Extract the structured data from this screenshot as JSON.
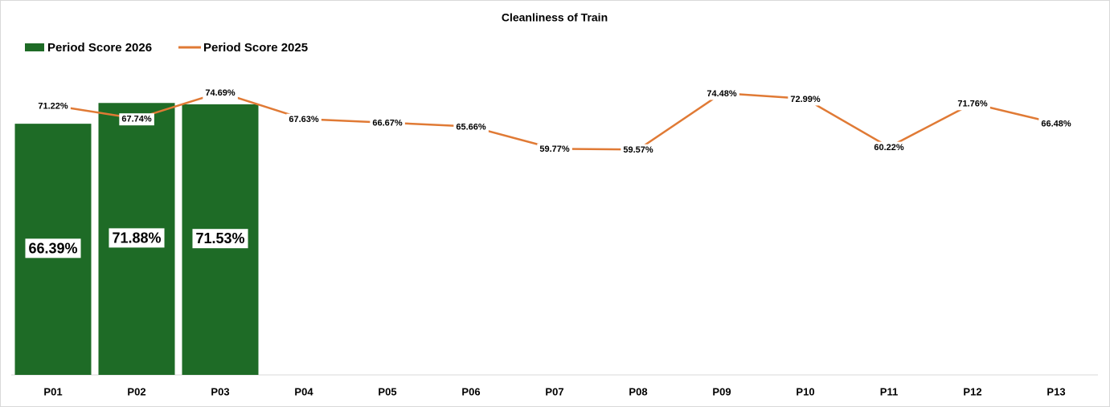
{
  "chart_data": {
    "type": "bar_line",
    "title": "Cleanliness of Train",
    "categories": [
      "P01",
      "P02",
      "P03",
      "P04",
      "P05",
      "P06",
      "P07",
      "P08",
      "P09",
      "P10",
      "P11",
      "P12",
      "P13"
    ],
    "series": [
      {
        "name": "Period Score 2026",
        "type": "bar",
        "color": "#1e6b26",
        "values": [
          66.39,
          71.88,
          71.53,
          null,
          null,
          null,
          null,
          null,
          null,
          null,
          null,
          null,
          null
        ],
        "value_labels": [
          "66.39%",
          "71.88%",
          "71.53%",
          null,
          null,
          null,
          null,
          null,
          null,
          null,
          null,
          null,
          null
        ]
      },
      {
        "name": "Period Score 2025",
        "type": "line",
        "color": "#e07a35",
        "values": [
          71.22,
          67.74,
          74.69,
          67.63,
          66.67,
          65.66,
          59.77,
          59.57,
          74.48,
          72.99,
          60.22,
          71.76,
          66.48
        ],
        "value_labels": [
          "71.22%",
          "67.74%",
          "74.69%",
          "67.63%",
          "66.67%",
          "65.66%",
          "59.77%",
          "59.57%",
          "74.48%",
          "72.99%",
          "60.22%",
          "71.76%",
          "66.48%"
        ]
      }
    ],
    "ylim": [
      0,
      80
    ],
    "legend": "top-left"
  }
}
